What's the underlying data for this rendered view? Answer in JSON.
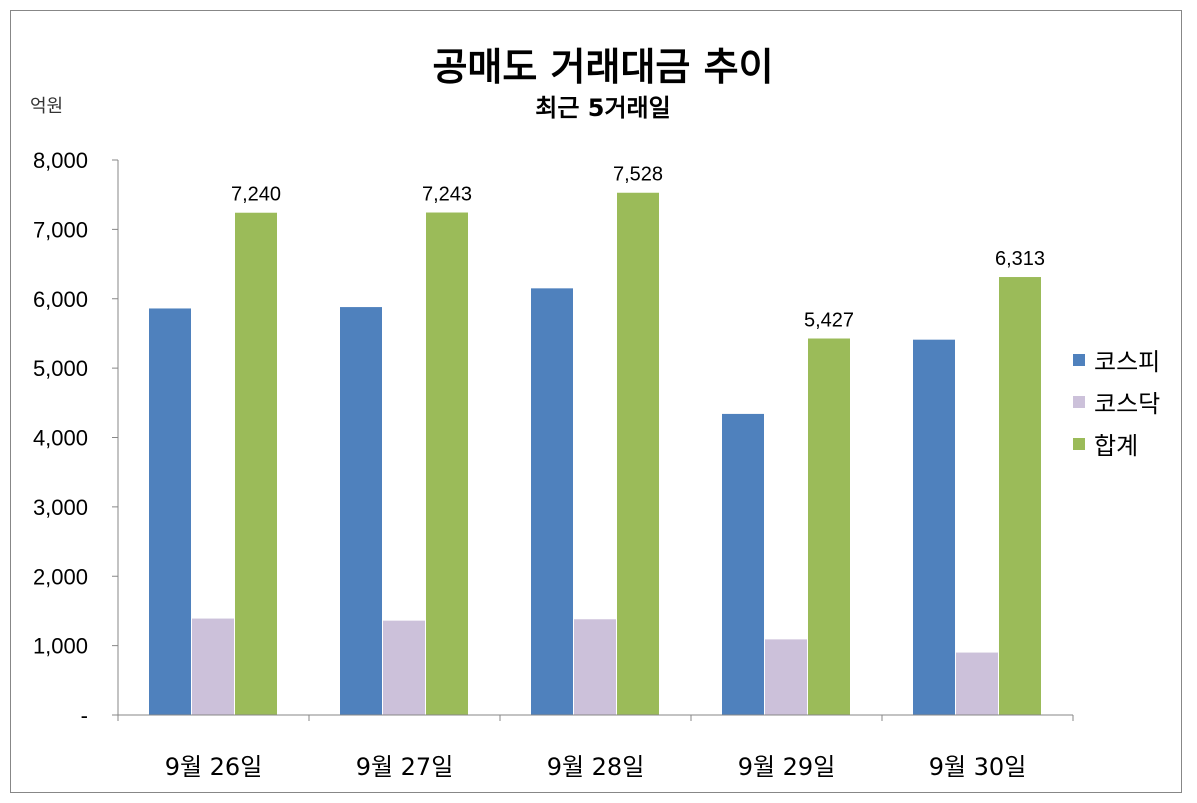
{
  "chart_data": {
    "type": "bar",
    "title": "공매도 거래대금 추이",
    "subtitle": "최근 5거래일",
    "unit_label": "억원",
    "categories": [
      "9월 26일",
      "9월 27일",
      "9월 28일",
      "9월 29일",
      "9월 30일"
    ],
    "ylim": [
      0,
      8000
    ],
    "yticks": [
      "-",
      "1,000",
      "2,000",
      "3,000",
      "4,000",
      "5,000",
      "6,000",
      "7,000",
      "8,000"
    ],
    "ytick_values": [
      0,
      1000,
      2000,
      3000,
      4000,
      5000,
      6000,
      7000,
      8000
    ],
    "grid": false,
    "legend_position": "right",
    "series": [
      {
        "name": "코스피",
        "color": "#4F81BD",
        "values": [
          5860,
          5880,
          6150,
          4340,
          5410
        ]
      },
      {
        "name": "코스닥",
        "color": "#CCC1DA",
        "values": [
          1390,
          1360,
          1380,
          1090,
          900
        ]
      },
      {
        "name": "합계",
        "color": "#9BBB59",
        "values": [
          7240,
          7243,
          7528,
          5427,
          6313
        ],
        "data_labels": [
          "7,240",
          "7,243",
          "7,528",
          "5,427",
          "6,313"
        ]
      }
    ]
  }
}
